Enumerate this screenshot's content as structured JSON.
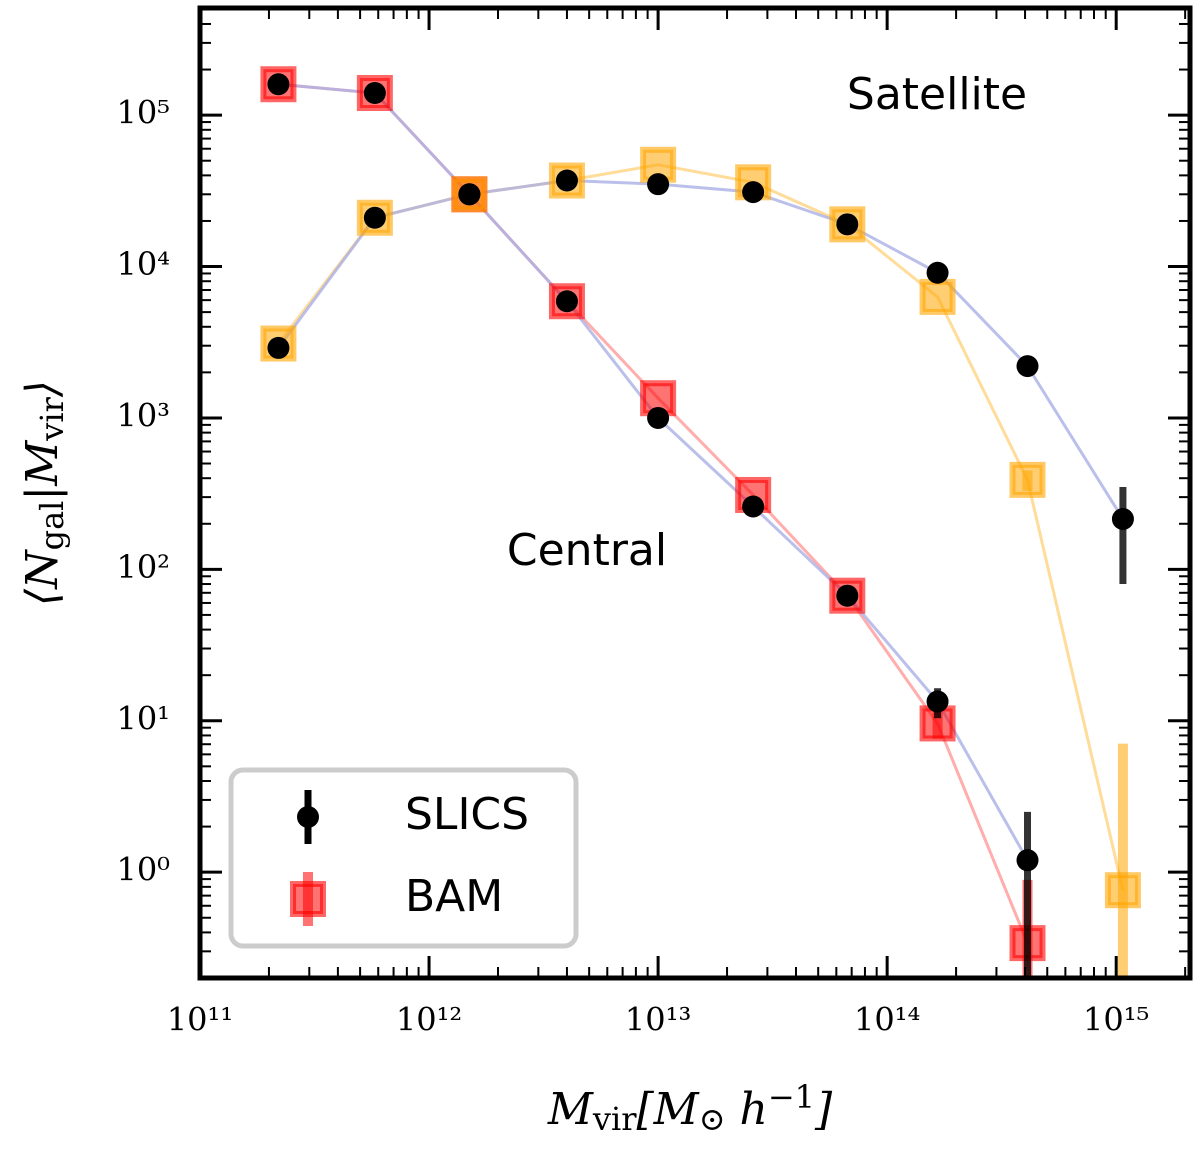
{
  "chart_data": {
    "type": "scatter",
    "xlabel": [
      {
        "text": "M"
      },
      {
        "text": "vir",
        "sub": true
      },
      {
        "text": "[M"
      },
      {
        "text": "⊙",
        "sub": true
      },
      {
        "text": " h"
      },
      {
        "text": "−1",
        "sup": true
      },
      {
        "text": "]"
      }
    ],
    "ylabel": [
      {
        "text": "⟨N"
      },
      {
        "text": "gal",
        "sub": true
      },
      {
        "text": "|M"
      },
      {
        "text": "vir",
        "sub": true
      },
      {
        "text": "⟩"
      }
    ],
    "annotations": [
      "Satellite",
      "Central"
    ],
    "xscale": "log",
    "yscale": "log",
    "xlim": [
      100000000000.0,
      2100000000000000.0
    ],
    "ylim": [
      0.2,
      510000.0
    ],
    "xticks": [
      {
        "value": 100000000000.0,
        "label": "10¹¹"
      },
      {
        "value": 1000000000000.0,
        "label": "10¹²"
      },
      {
        "value": 10000000000000.0,
        "label": "10¹³"
      },
      {
        "value": 100000000000000.0,
        "label": "10¹⁴"
      },
      {
        "value": 1000000000000000.0,
        "label": "10¹⁵"
      }
    ],
    "yticks": [
      {
        "value": 1,
        "label": "10⁰"
      },
      {
        "value": 10,
        "label": "10¹"
      },
      {
        "value": 100,
        "label": "10²"
      },
      {
        "value": 1000,
        "label": "10³"
      },
      {
        "value": 10000,
        "label": "10⁴"
      },
      {
        "value": 100000,
        "label": "10⁵"
      }
    ],
    "minor_ticks": true,
    "legend": "lower left",
    "x": [
      220000000000.0,
      580000000000.0,
      1500000000000.0,
      4000000000000.0,
      10000000000000.0,
      26000000000000.0,
      67000000000000.0,
      166000000000000.0,
      410000000000000.0,
      1070000000000000.0
    ],
    "series": [
      {
        "name": "SLICS",
        "color": "#000000",
        "line_color": "#aab0e6",
        "marker": "circle",
        "central": {
          "values": [
            160000,
            140000,
            30000,
            5900,
            1000,
            260,
            67,
            13.4,
            1.2,
            null
          ],
          "errors": [
            null,
            null,
            null,
            null,
            null,
            null,
            null,
            3,
            1.3,
            null
          ]
        },
        "satellite": {
          "values": [
            2900,
            21000,
            30000,
            37000,
            35000,
            31000,
            19000,
            9100,
            2200,
            215
          ],
          "errors": [
            null,
            null,
            null,
            null,
            null,
            null,
            null,
            null,
            null,
            135
          ]
        }
      },
      {
        "name": "BAM",
        "color": "#ff0000",
        "satellite_color": "#ffa500",
        "line_color": "#ff9999",
        "satellite_line_color": "#ffd37f",
        "marker": "square",
        "central": {
          "values": [
            160000,
            140000,
            30000,
            5900,
            1350,
            310,
            67,
            9.6,
            0.34,
            null
          ],
          "errors": [
            null,
            null,
            null,
            null,
            null,
            null,
            null,
            2,
            0.55,
            null
          ]
        },
        "satellite": {
          "values": [
            3100,
            21000,
            30000,
            37000,
            47000,
            36000,
            19000,
            6300,
            390,
            0.76
          ],
          "errors": [
            null,
            null,
            null,
            null,
            null,
            null,
            null,
            null,
            60,
            6.3
          ]
        }
      }
    ]
  }
}
